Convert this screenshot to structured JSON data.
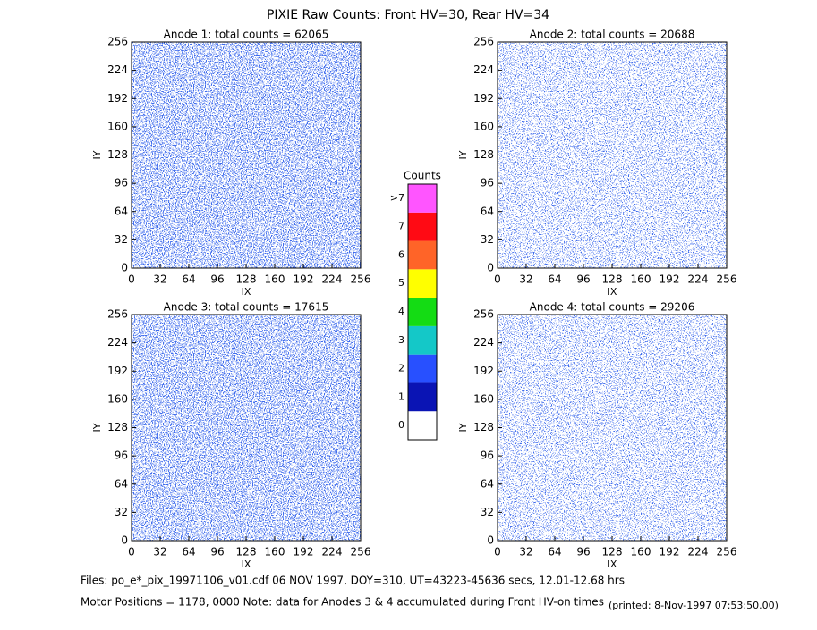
{
  "title": "PIXIE Raw Counts:  Front HV=30, Rear HV=34",
  "chart_data": [
    {
      "type": "heatmap",
      "title": "Anode 1: total counts = 62065",
      "x_label": "IX",
      "y_label": "IY",
      "xlim": [
        0,
        256
      ],
      "ylim": [
        0,
        256
      ],
      "xticks": [
        0,
        32,
        64,
        96,
        128,
        160,
        192,
        224,
        256
      ],
      "yticks": [
        0,
        32,
        64,
        96,
        128,
        160,
        192,
        224,
        256
      ]
    },
    {
      "type": "heatmap",
      "title": "Anode 2: total counts = 20688",
      "x_label": "IX",
      "y_label": "IY",
      "xlim": [
        0,
        256
      ],
      "ylim": [
        0,
        256
      ],
      "xticks": [
        0,
        32,
        64,
        96,
        128,
        160,
        192,
        224,
        256
      ],
      "yticks": [
        0,
        32,
        64,
        96,
        128,
        160,
        192,
        224,
        256
      ]
    },
    {
      "type": "heatmap",
      "title": "Anode 3: total counts = 17615",
      "x_label": "IX",
      "y_label": "IY",
      "xlim": [
        0,
        256
      ],
      "ylim": [
        0,
        256
      ],
      "xticks": [
        0,
        32,
        64,
        96,
        128,
        160,
        192,
        224,
        256
      ],
      "yticks": [
        0,
        32,
        64,
        96,
        128,
        160,
        192,
        224,
        256
      ]
    },
    {
      "type": "heatmap",
      "title": "Anode 4: total counts = 29206",
      "x_label": "IX",
      "y_label": "IY",
      "xlim": [
        0,
        256
      ],
      "ylim": [
        0,
        256
      ],
      "xticks": [
        0,
        32,
        64,
        96,
        128,
        160,
        192,
        224,
        256
      ],
      "yticks": [
        0,
        32,
        64,
        96,
        128,
        160,
        192,
        224,
        256
      ]
    }
  ],
  "colorbar": {
    "title": "Counts",
    "labels": [
      "0",
      "1",
      "2",
      "3",
      "4",
      "5",
      "6",
      "7",
      ">7"
    ],
    "colors": [
      "#ffffff",
      "#0a14b4",
      "#2850ff",
      "#14c8c8",
      "#14dc14",
      "#ffff00",
      "#ff6428",
      "#ff0a14",
      "#ff55ff"
    ]
  },
  "footer": {
    "files": "Files: po_e*_pix_19971106_v01.cdf    06 NOV 1997, DOY=310, UT=43223-45636 secs, 12.01-12.68 hrs",
    "motor": "Motor Positions = 1178, 0000   Note: data for Anodes 3 & 4 accumulated during Front HV-on times",
    "printed": "(printed:  8-Nov-1997 07:53:50.00)"
  }
}
